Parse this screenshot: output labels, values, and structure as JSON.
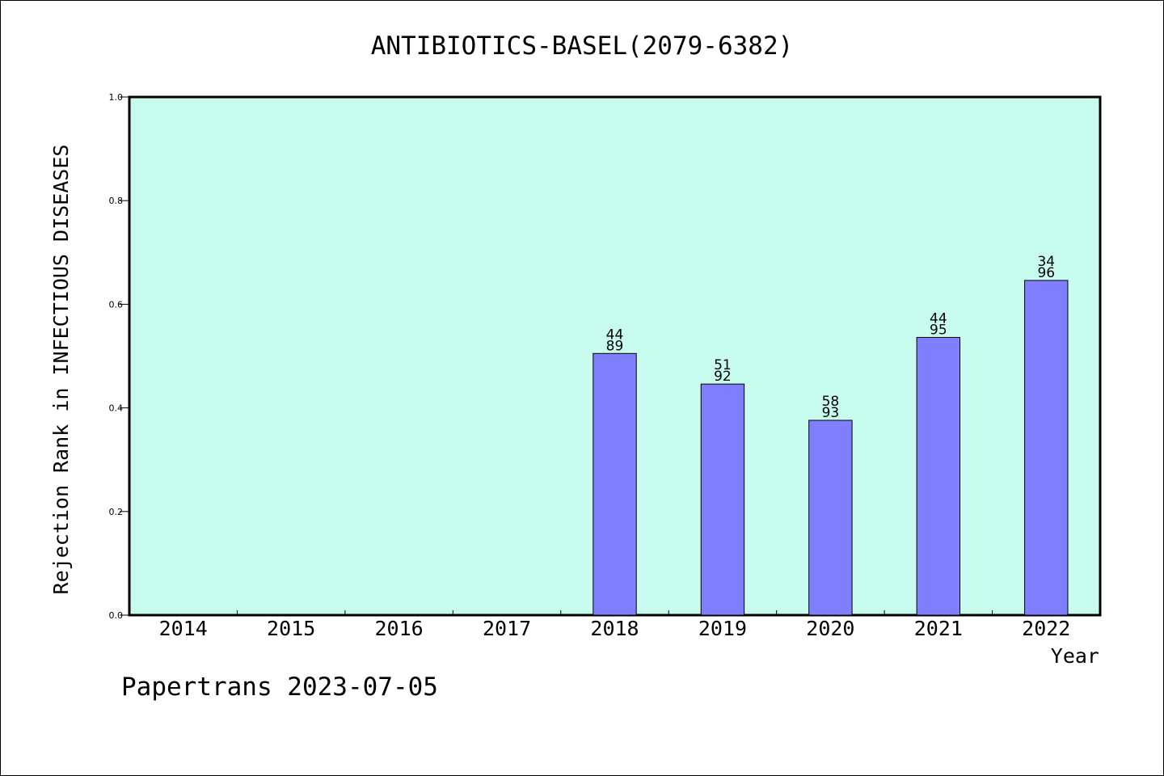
{
  "chart_data": {
    "type": "bar",
    "title": "ANTIBIOTICS-BASEL(2079-6382)",
    "xlabel": "Year",
    "ylabel": "Rejection Rank in INFECTIOUS DISEASES",
    "categories": [
      "2014",
      "2015",
      "2016",
      "2017",
      "2018",
      "2019",
      "2020",
      "2021",
      "2022"
    ],
    "values": [
      null,
      null,
      null,
      null,
      0.505,
      0.446,
      0.376,
      0.536,
      0.646
    ],
    "bar_labels": [
      null,
      null,
      null,
      null,
      [
        "44",
        "89"
      ],
      [
        "51",
        "92"
      ],
      [
        "58",
        "93"
      ],
      [
        "44",
        "95"
      ],
      [
        "34",
        "96"
      ]
    ],
    "ylim": [
      0,
      1.0
    ],
    "yticks": [
      "0.0",
      "0.2",
      "0.4",
      "0.6",
      "0.8",
      "1.0"
    ],
    "grid": false,
    "legend": "none",
    "colors": {
      "plot_background": "#c8fcee",
      "bar_fill": "#8080ff",
      "bar_stroke": "#000000",
      "axis": "#000000"
    }
  },
  "footer": {
    "caption": "Papertrans 2023-07-05"
  }
}
